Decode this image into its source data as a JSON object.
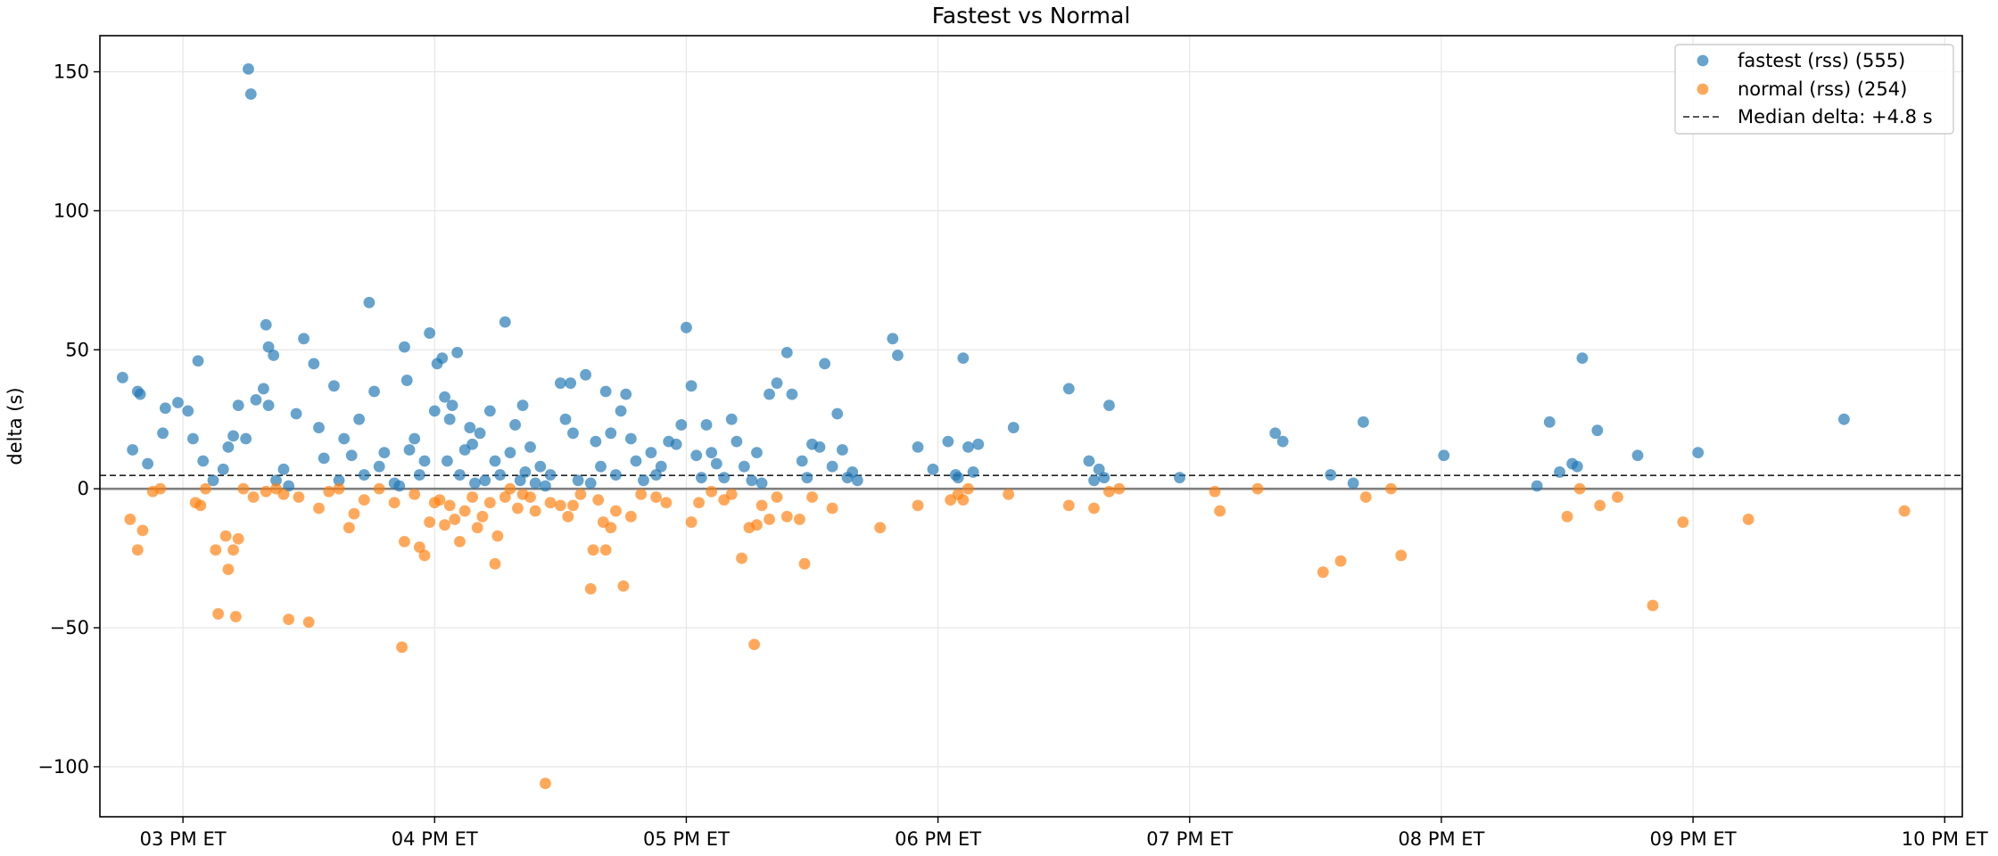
{
  "chart_data": {
    "type": "scatter",
    "title": "Fastest vs Normal",
    "xlabel": "",
    "ylabel": "delta (s)",
    "x_unit": "hours ET (24h)",
    "xlim": [
      14.67,
      22.07
    ],
    "ylim": [
      -118,
      163
    ],
    "x_ticks": [
      15,
      16,
      17,
      18,
      19,
      20,
      21,
      22
    ],
    "x_tick_labels": [
      "03 PM ET",
      "04 PM ET",
      "05 PM ET",
      "06 PM ET",
      "07 PM ET",
      "08 PM ET",
      "09 PM ET",
      "10 PM ET"
    ],
    "y_ticks": [
      -100,
      -50,
      0,
      50,
      100,
      150
    ],
    "y_tick_labels": [
      "−100",
      "−50",
      "0",
      "50",
      "100",
      "150"
    ],
    "grid": true,
    "legend_position": "top-right",
    "median_line": {
      "y": 4.8,
      "label": "Median delta: +4.8 s",
      "style": "dashed"
    },
    "zero_line": {
      "y": 0
    },
    "series": [
      {
        "name": "fastest (rss) (555)",
        "color": "#1f77b4",
        "points": [
          [
            14.76,
            40
          ],
          [
            14.82,
            35
          ],
          [
            14.83,
            34
          ],
          [
            14.93,
            29
          ],
          [
            14.8,
            14
          ],
          [
            14.86,
            9
          ],
          [
            14.92,
            20
          ],
          [
            14.98,
            31
          ],
          [
            15.02,
            28
          ],
          [
            15.06,
            46
          ],
          [
            15.08,
            10
          ],
          [
            15.04,
            18
          ],
          [
            15.12,
            3
          ],
          [
            15.16,
            7
          ],
          [
            15.18,
            15
          ],
          [
            15.2,
            19
          ],
          [
            15.22,
            30
          ],
          [
            15.25,
            18
          ],
          [
            15.26,
            151
          ],
          [
            15.27,
            142
          ],
          [
            15.29,
            32
          ],
          [
            15.32,
            36
          ],
          [
            15.33,
            59
          ],
          [
            15.34,
            51
          ],
          [
            15.34,
            30
          ],
          [
            15.36,
            48
          ],
          [
            15.37,
            3
          ],
          [
            15.4,
            7
          ],
          [
            15.42,
            1
          ],
          [
            15.45,
            27
          ],
          [
            15.48,
            54
          ],
          [
            15.52,
            45
          ],
          [
            15.54,
            22
          ],
          [
            15.56,
            11
          ],
          [
            15.6,
            37
          ],
          [
            15.62,
            3
          ],
          [
            15.64,
            18
          ],
          [
            15.67,
            12
          ],
          [
            15.7,
            25
          ],
          [
            15.72,
            5
          ],
          [
            15.74,
            67
          ],
          [
            15.76,
            35
          ],
          [
            15.78,
            8
          ],
          [
            15.8,
            13
          ],
          [
            15.84,
            2
          ],
          [
            15.86,
            1
          ],
          [
            15.88,
            51
          ],
          [
            15.89,
            39
          ],
          [
            15.9,
            14
          ],
          [
            15.92,
            18
          ],
          [
            15.94,
            5
          ],
          [
            15.96,
            10
          ],
          [
            15.98,
            56
          ],
          [
            16.0,
            28
          ],
          [
            16.01,
            45
          ],
          [
            16.03,
            47
          ],
          [
            16.04,
            33
          ],
          [
            16.05,
            10
          ],
          [
            16.06,
            25
          ],
          [
            16.07,
            30
          ],
          [
            16.09,
            49
          ],
          [
            16.1,
            5
          ],
          [
            16.12,
            14
          ],
          [
            16.14,
            22
          ],
          [
            16.15,
            16
          ],
          [
            16.16,
            2
          ],
          [
            16.18,
            20
          ],
          [
            16.2,
            3
          ],
          [
            16.22,
            28
          ],
          [
            16.24,
            10
          ],
          [
            16.26,
            5
          ],
          [
            16.28,
            60
          ],
          [
            16.3,
            13
          ],
          [
            16.32,
            23
          ],
          [
            16.34,
            3
          ],
          [
            16.35,
            30
          ],
          [
            16.36,
            6
          ],
          [
            16.38,
            15
          ],
          [
            16.4,
            2
          ],
          [
            16.42,
            8
          ],
          [
            16.44,
            1
          ],
          [
            16.46,
            5
          ],
          [
            16.5,
            38
          ],
          [
            16.52,
            25
          ],
          [
            16.54,
            38
          ],
          [
            16.55,
            20
          ],
          [
            16.57,
            3
          ],
          [
            16.6,
            41
          ],
          [
            16.62,
            2
          ],
          [
            16.64,
            17
          ],
          [
            16.66,
            8
          ],
          [
            16.68,
            35
          ],
          [
            16.7,
            20
          ],
          [
            16.72,
            5
          ],
          [
            16.74,
            28
          ],
          [
            16.76,
            34
          ],
          [
            16.78,
            18
          ],
          [
            16.8,
            10
          ],
          [
            16.83,
            3
          ],
          [
            16.86,
            13
          ],
          [
            16.88,
            5
          ],
          [
            16.9,
            8
          ],
          [
            16.93,
            17
          ],
          [
            16.96,
            16
          ],
          [
            16.98,
            23
          ],
          [
            17.0,
            58
          ],
          [
            17.02,
            37
          ],
          [
            17.04,
            12
          ],
          [
            17.06,
            4
          ],
          [
            17.08,
            23
          ],
          [
            17.1,
            13
          ],
          [
            17.12,
            9
          ],
          [
            17.15,
            4
          ],
          [
            17.18,
            25
          ],
          [
            17.2,
            17
          ],
          [
            17.23,
            8
          ],
          [
            17.26,
            3
          ],
          [
            17.28,
            13
          ],
          [
            17.3,
            2
          ],
          [
            17.33,
            34
          ],
          [
            17.36,
            38
          ],
          [
            17.4,
            49
          ],
          [
            17.42,
            34
          ],
          [
            17.46,
            10
          ],
          [
            17.48,
            4
          ],
          [
            17.5,
            16
          ],
          [
            17.53,
            15
          ],
          [
            17.55,
            45
          ],
          [
            17.58,
            8
          ],
          [
            17.6,
            27
          ],
          [
            17.62,
            14
          ],
          [
            17.64,
            4
          ],
          [
            17.66,
            6
          ],
          [
            17.68,
            3
          ],
          [
            17.82,
            54
          ],
          [
            17.84,
            48
          ],
          [
            17.92,
            15
          ],
          [
            17.98,
            7
          ],
          [
            18.04,
            17
          ],
          [
            18.07,
            5
          ],
          [
            18.08,
            4
          ],
          [
            18.1,
            47
          ],
          [
            18.12,
            15
          ],
          [
            18.14,
            6
          ],
          [
            18.16,
            16
          ],
          [
            18.3,
            22
          ],
          [
            18.52,
            36
          ],
          [
            18.6,
            10
          ],
          [
            18.62,
            3
          ],
          [
            18.64,
            7
          ],
          [
            18.66,
            4
          ],
          [
            18.68,
            30
          ],
          [
            18.96,
            4
          ],
          [
            19.34,
            20
          ],
          [
            19.37,
            17
          ],
          [
            19.56,
            5
          ],
          [
            19.65,
            2
          ],
          [
            19.69,
            24
          ],
          [
            20.01,
            12
          ],
          [
            20.38,
            1
          ],
          [
            20.43,
            24
          ],
          [
            20.47,
            6
          ],
          [
            20.52,
            9
          ],
          [
            20.54,
            8
          ],
          [
            20.56,
            47
          ],
          [
            20.62,
            21
          ],
          [
            20.78,
            12
          ],
          [
            21.02,
            13
          ],
          [
            21.6,
            25
          ]
        ]
      },
      {
        "name": "normal (rss) (254)",
        "color": "#ff7f0e",
        "points": [
          [
            14.79,
            -11
          ],
          [
            14.82,
            -22
          ],
          [
            14.84,
            -15
          ],
          [
            14.88,
            -1
          ],
          [
            14.91,
            0
          ],
          [
            15.05,
            -5
          ],
          [
            15.07,
            -6
          ],
          [
            15.09,
            0
          ],
          [
            15.13,
            -22
          ],
          [
            15.14,
            -45
          ],
          [
            15.17,
            -17
          ],
          [
            15.18,
            -29
          ],
          [
            15.2,
            -22
          ],
          [
            15.21,
            -46
          ],
          [
            15.22,
            -18
          ],
          [
            15.24,
            0
          ],
          [
            15.28,
            -3
          ],
          [
            15.33,
            -1
          ],
          [
            15.37,
            0
          ],
          [
            15.4,
            -2
          ],
          [
            15.42,
            -47
          ],
          [
            15.46,
            -3
          ],
          [
            15.5,
            -48
          ],
          [
            15.54,
            -7
          ],
          [
            15.58,
            -1
          ],
          [
            15.62,
            0
          ],
          [
            15.66,
            -14
          ],
          [
            15.68,
            -9
          ],
          [
            15.72,
            -4
          ],
          [
            15.78,
            0
          ],
          [
            15.84,
            -5
          ],
          [
            15.87,
            -57
          ],
          [
            15.88,
            -19
          ],
          [
            15.92,
            -2
          ],
          [
            15.94,
            -21
          ],
          [
            15.96,
            -24
          ],
          [
            15.98,
            -12
          ],
          [
            16.0,
            -5
          ],
          [
            16.02,
            -4
          ],
          [
            16.04,
            -13
          ],
          [
            16.06,
            -6
          ],
          [
            16.08,
            -11
          ],
          [
            16.1,
            -19
          ],
          [
            16.12,
            -8
          ],
          [
            16.15,
            -3
          ],
          [
            16.17,
            -14
          ],
          [
            16.19,
            -10
          ],
          [
            16.22,
            -5
          ],
          [
            16.24,
            -27
          ],
          [
            16.25,
            -17
          ],
          [
            16.28,
            -3
          ],
          [
            16.3,
            0
          ],
          [
            16.33,
            -7
          ],
          [
            16.35,
            -2
          ],
          [
            16.38,
            -3
          ],
          [
            16.4,
            -8
          ],
          [
            16.44,
            -106
          ],
          [
            16.46,
            -5
          ],
          [
            16.5,
            -6
          ],
          [
            16.53,
            -10
          ],
          [
            16.55,
            -6
          ],
          [
            16.58,
            -2
          ],
          [
            16.62,
            -36
          ],
          [
            16.63,
            -22
          ],
          [
            16.65,
            -4
          ],
          [
            16.67,
            -12
          ],
          [
            16.68,
            -22
          ],
          [
            16.7,
            -14
          ],
          [
            16.72,
            -8
          ],
          [
            16.75,
            -35
          ],
          [
            16.78,
            -10
          ],
          [
            16.82,
            -2
          ],
          [
            16.88,
            -3
          ],
          [
            16.92,
            -5
          ],
          [
            17.02,
            -12
          ],
          [
            17.05,
            -5
          ],
          [
            17.1,
            -1
          ],
          [
            17.15,
            -4
          ],
          [
            17.18,
            -2
          ],
          [
            17.22,
            -25
          ],
          [
            17.25,
            -14
          ],
          [
            17.27,
            -56
          ],
          [
            17.28,
            -13
          ],
          [
            17.3,
            -6
          ],
          [
            17.33,
            -11
          ],
          [
            17.36,
            -3
          ],
          [
            17.4,
            -10
          ],
          [
            17.45,
            -11
          ],
          [
            17.47,
            -27
          ],
          [
            17.5,
            -3
          ],
          [
            17.58,
            -7
          ],
          [
            17.77,
            -14
          ],
          [
            17.92,
            -6
          ],
          [
            18.05,
            -4
          ],
          [
            18.08,
            -2
          ],
          [
            18.1,
            -4
          ],
          [
            18.12,
            0
          ],
          [
            18.28,
            -2
          ],
          [
            18.52,
            -6
          ],
          [
            18.62,
            -7
          ],
          [
            18.68,
            -1
          ],
          [
            18.72,
            0
          ],
          [
            19.1,
            -1
          ],
          [
            19.12,
            -8
          ],
          [
            19.27,
            0
          ],
          [
            19.53,
            -30
          ],
          [
            19.6,
            -26
          ],
          [
            19.7,
            -3
          ],
          [
            19.8,
            0
          ],
          [
            19.84,
            -24
          ],
          [
            20.5,
            -10
          ],
          [
            20.55,
            0
          ],
          [
            20.63,
            -6
          ],
          [
            20.7,
            -3
          ],
          [
            20.84,
            -42
          ],
          [
            20.96,
            -12
          ],
          [
            21.22,
            -11
          ],
          [
            21.84,
            -8
          ]
        ]
      }
    ]
  }
}
